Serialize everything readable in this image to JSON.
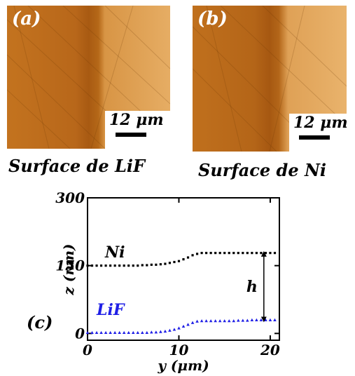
{
  "panels": [
    {
      "letter": "(a)",
      "scale": "12 μm",
      "caption": "Surface de LiF"
    },
    {
      "letter": "(b)",
      "scale": "12 μm",
      "caption": "Surface de Ni"
    }
  ],
  "colors": {
    "ni": "#000000",
    "lif": "#1f1fe6",
    "afm_dark": "#a85a12",
    "afm_light": "#e4a860"
  },
  "chart_data": {
    "type": "scatter",
    "panel_label": "(c)",
    "xlabel": "y (μm)",
    "ylabel": "z (nm)",
    "xlim": [
      0,
      21
    ],
    "ylim": [
      -15,
      300
    ],
    "xticks": [
      0,
      10,
      20
    ],
    "yticks": [
      0,
      150,
      300
    ],
    "annotation": "h",
    "series": [
      {
        "name": "Ni",
        "marker": "square",
        "x": [
          0,
          0.5,
          1,
          1.5,
          2,
          2.5,
          3,
          3.5,
          4,
          4.5,
          5,
          5.5,
          6,
          6.5,
          7,
          7.5,
          8,
          8.5,
          9,
          9.5,
          10,
          10.5,
          11,
          11.5,
          12,
          12.5,
          13,
          13.5,
          14,
          14.5,
          15,
          15.5,
          16,
          16.5,
          17,
          17.5,
          18,
          18.5,
          19,
          19.5,
          20,
          20.5
        ],
        "y": [
          150,
          150,
          150,
          150,
          150,
          150,
          150,
          150,
          150,
          150,
          150,
          150,
          151,
          151,
          152,
          152,
          153,
          154,
          156,
          158,
          160,
          164,
          168,
          173,
          176,
          178,
          178,
          178,
          178,
          178,
          178,
          178,
          178,
          178,
          178,
          178,
          178,
          178,
          178,
          178,
          178,
          178
        ]
      },
      {
        "name": "LiF",
        "marker": "triangle",
        "x": [
          0,
          0.5,
          1,
          1.5,
          2,
          2.5,
          3,
          3.5,
          4,
          4.5,
          5,
          5.5,
          6,
          6.5,
          7,
          7.5,
          8,
          8.5,
          9,
          9.5,
          10,
          10.5,
          11,
          11.5,
          12,
          12.5,
          13,
          13.5,
          14,
          14.5,
          15,
          15.5,
          16,
          16.5,
          17,
          17.5,
          18,
          18.5,
          19,
          19.5,
          20,
          20.5
        ],
        "y": [
          2,
          2,
          2,
          2,
          2,
          2,
          2,
          2,
          2,
          2,
          2,
          2,
          2,
          2,
          3,
          3,
          4,
          5,
          7,
          9,
          12,
          16,
          20,
          24,
          27,
          28,
          28,
          28,
          28,
          28,
          28,
          28,
          28,
          29,
          29,
          29,
          30,
          30,
          30,
          30,
          30,
          30
        ]
      }
    ]
  }
}
